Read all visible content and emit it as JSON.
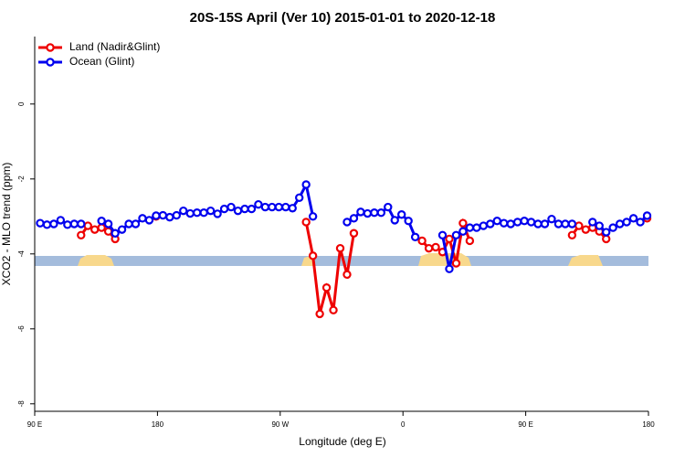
{
  "chart_data": {
    "type": "line",
    "title": "20S-15S April (Ver 10)   2015-01-01 to 2020-12-18",
    "xlabel": "Longitude (deg E)",
    "ylabel": "XCO2 - MLO trend (ppm)",
    "legend": "top-left",
    "xlim": [
      90,
      540
    ],
    "xticks": [
      {
        "value": 90,
        "label": "90 E"
      },
      180,
      {
        "value": 270,
        "label": "90 W"
      },
      {
        "value": 360,
        "label": "0"
      },
      {
        "value": 450,
        "label": "90 E"
      },
      {
        "value": 540,
        "label": "180"
      }
    ],
    "ylim": [
      -8.2,
      1.8
    ],
    "yticks": [
      0,
      -2,
      -4,
      -6,
      -8
    ],
    "x": [
      94,
      99,
      104,
      109,
      114,
      119,
      124,
      129,
      134,
      139,
      144,
      149,
      154,
      159,
      164,
      169,
      174,
      179,
      184,
      189,
      194,
      199,
      204,
      209,
      214,
      219,
      224,
      229,
      234,
      239,
      244,
      249,
      254,
      259,
      264,
      269,
      274,
      279,
      284,
      289,
      294,
      299,
      304,
      309,
      314,
      319,
      324,
      329,
      334,
      339,
      344,
      349,
      354,
      359,
      364,
      369,
      374,
      379,
      384,
      389,
      394,
      399,
      404,
      409,
      414,
      419,
      424,
      429,
      434,
      439,
      444,
      449,
      454,
      459,
      464,
      469,
      474,
      479,
      484,
      489,
      494,
      499,
      504,
      509,
      514,
      519,
      524,
      529,
      534,
      539
    ],
    "series": [
      {
        "name": "Land (Nadir&Glint)",
        "color": "#ee0000",
        "values": [
          null,
          null,
          null,
          null,
          null,
          null,
          -3.5,
          -3.25,
          -3.35,
          -3.3,
          -3.4,
          -3.6,
          null,
          null,
          null,
          null,
          null,
          -3.0,
          null,
          null,
          null,
          null,
          null,
          null,
          null,
          null,
          null,
          null,
          null,
          null,
          null,
          null,
          null,
          null,
          null,
          null,
          null,
          null,
          null,
          -3.15,
          -4.05,
          -5.6,
          -4.9,
          -5.5,
          -3.85,
          -4.55,
          -3.45,
          null,
          null,
          null,
          null,
          null,
          null,
          null,
          null,
          null,
          -3.65,
          -3.85,
          -3.82,
          -3.95,
          -3.6,
          -4.25,
          -3.18,
          -3.65,
          null,
          null,
          null,
          null,
          null,
          null,
          null,
          null,
          null,
          null,
          null,
          null,
          null,
          null,
          -3.5,
          -3.25,
          -3.35,
          -3.3,
          -3.4,
          -3.6,
          null,
          null,
          null,
          null,
          null,
          -3.05
        ]
      },
      {
        "name": "Ocean (Glint)",
        "color": "#0000ee",
        "values": [
          -3.18,
          -3.22,
          -3.2,
          -3.1,
          -3.22,
          -3.2,
          -3.2,
          null,
          null,
          -3.12,
          -3.2,
          -3.45,
          -3.35,
          -3.2,
          -3.2,
          -3.05,
          -3.1,
          -2.98,
          -2.97,
          -3.02,
          -2.97,
          -2.85,
          -2.92,
          -2.9,
          -2.9,
          -2.85,
          -2.93,
          -2.8,
          -2.75,
          -2.85,
          -2.8,
          -2.8,
          -2.68,
          -2.75,
          -2.75,
          -2.75,
          -2.75,
          -2.78,
          -2.5,
          -2.15,
          -3.0,
          null,
          null,
          null,
          null,
          -3.15,
          -3.05,
          -2.88,
          -2.92,
          -2.9,
          -2.9,
          -2.75,
          -3.1,
          -2.95,
          -3.12,
          -3.55,
          null,
          null,
          null,
          -3.5,
          -4.4,
          -3.5,
          -3.4,
          -3.3,
          -3.3,
          -3.25,
          -3.2,
          -3.12,
          -3.18,
          -3.2,
          -3.15,
          -3.12,
          -3.15,
          -3.2,
          -3.2,
          -3.07,
          -3.2,
          -3.2,
          -3.2,
          null,
          null,
          -3.15,
          -3.25,
          -3.42,
          -3.3,
          -3.2,
          -3.15,
          -3.05,
          -3.15,
          -2.98
        ]
      }
    ]
  }
}
